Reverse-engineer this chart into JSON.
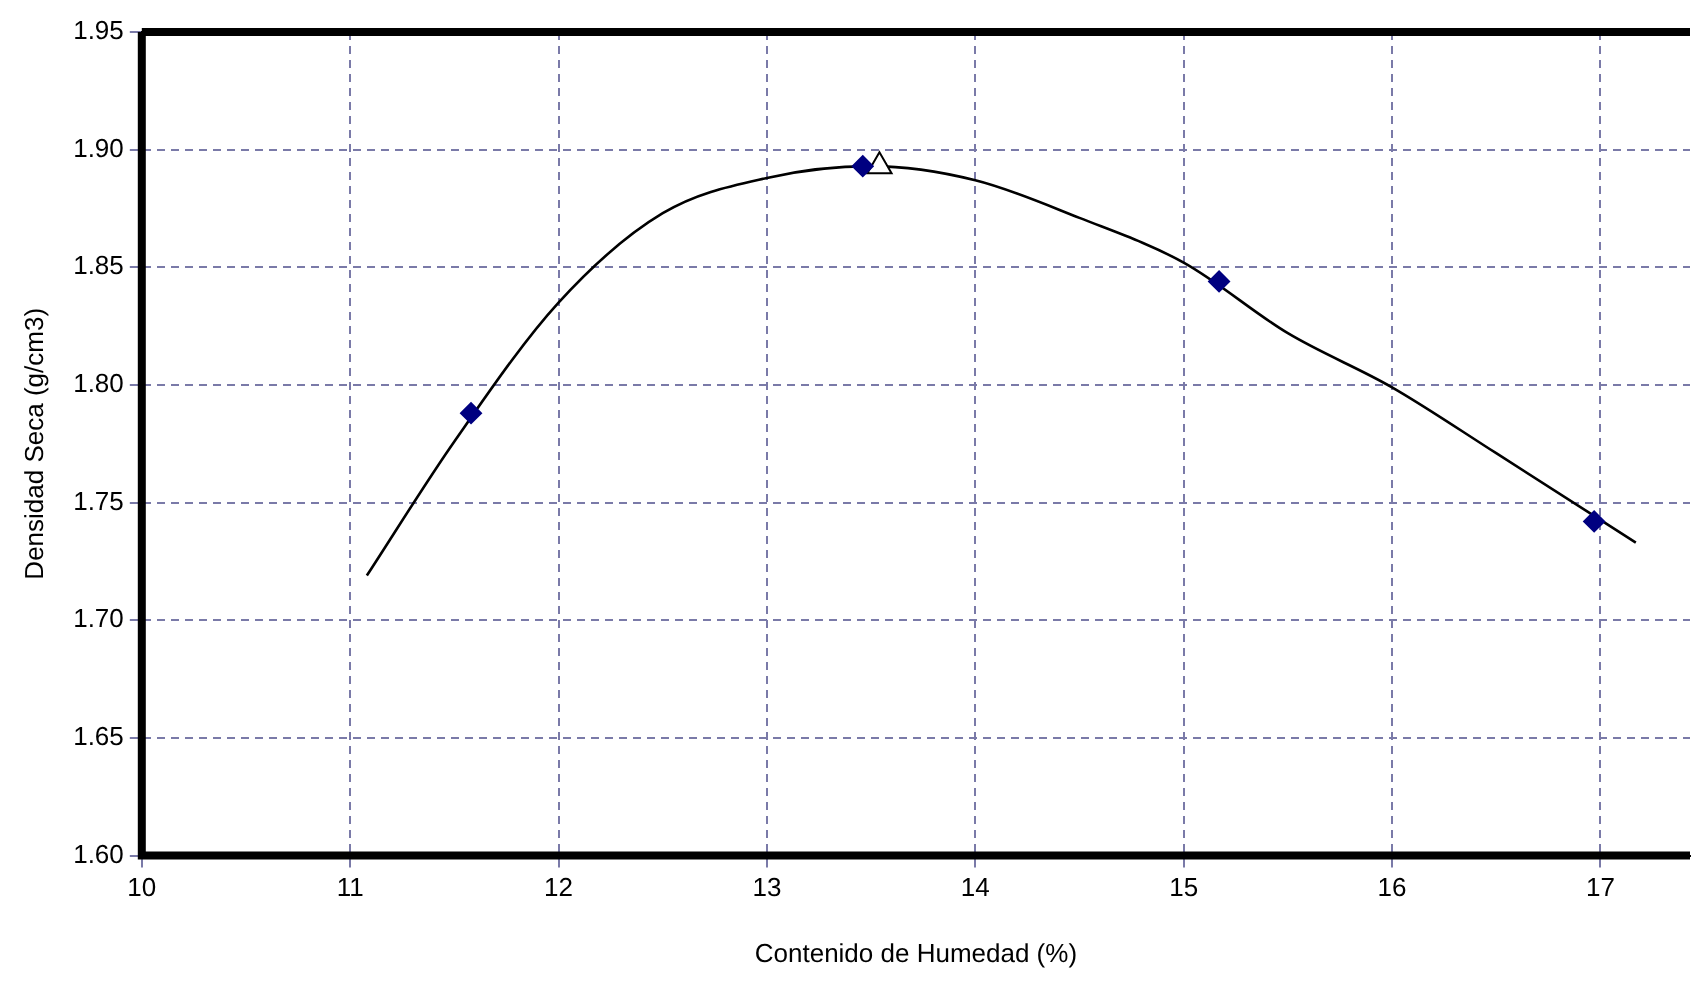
{
  "chart_data": {
    "type": "scatter",
    "xlabel": "Contenido de Humedad (%)",
    "ylabel": "Densidad Seca (g/cm3)",
    "xlim": [
      10,
      17.43
    ],
    "xticks": [
      10,
      11,
      12,
      13,
      14,
      15,
      16,
      17
    ],
    "ylim": [
      1.6,
      1.95
    ],
    "yticks": [
      {
        "value": 1.6,
        "label": "1.60"
      },
      {
        "value": 1.65,
        "label": "1.65"
      },
      {
        "value": 1.7,
        "label": "1.70"
      },
      {
        "value": 1.75,
        "label": "1.75"
      },
      {
        "value": 1.8,
        "label": "1.80"
      },
      {
        "value": 1.85,
        "label": "1.85"
      },
      {
        "value": 1.9,
        "label": "1.90"
      },
      {
        "value": 1.95,
        "label": "1.95"
      }
    ],
    "grid": true,
    "legend": false,
    "series": [
      {
        "type": "line",
        "color": "#000000",
        "marker": "none",
        "x": [
          11.08,
          11.5,
          12,
          12.5,
          13,
          13.5,
          14,
          14.5,
          15,
          15.5,
          16,
          16.5,
          17.17
        ],
        "values": [
          1.719,
          1.776,
          1.835,
          1.873,
          1.888,
          1.893,
          1.887,
          1.871,
          1.852,
          1.822,
          1.799,
          1.771,
          1.733
        ]
      },
      {
        "color": "#000080",
        "marker": "diamond",
        "x": [
          11.58,
          13.46,
          15.17,
          16.97
        ],
        "values": [
          1.788,
          1.893,
          1.844,
          1.742
        ]
      },
      {
        "color": "#000000",
        "marker": "triangle",
        "x": [
          13.54
        ],
        "values": [
          1.893
        ]
      }
    ]
  }
}
